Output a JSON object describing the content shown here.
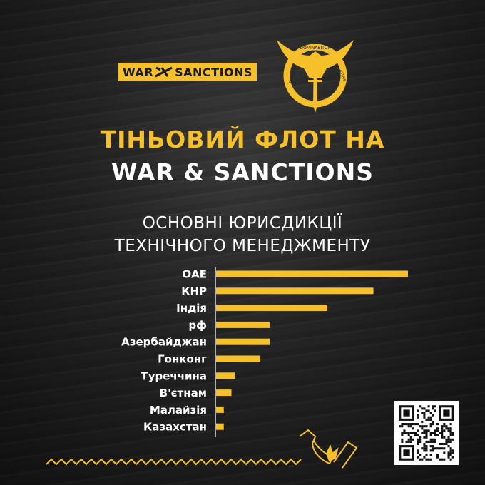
{
  "logo": {
    "text_left": "WAR",
    "text_right": "SANCTIONS",
    "emblem_text_top": "DOMINABITUR",
    "emblem_text_left": "SAPIENS",
    "emblem_text_right": "ASTRIS"
  },
  "header": {
    "title_line1": "ТІНЬОВИЙ ФЛОТ НА",
    "title_line2": "WAR & SANCTIONS"
  },
  "chart_title": {
    "line1": "ОСНОВНІ ЮРИСДИКЦІЇ",
    "line2": "ТЕХНІЧНОГО МЕНЕДЖМЕНТУ"
  },
  "colors": {
    "accent": "#f6c02b",
    "background": "#1a1a1a",
    "text": "#ffffff"
  },
  "chart_data": {
    "type": "bar",
    "orientation": "horizontal",
    "title": "ОСНОВНІ ЮРИСДИКЦІЇ ТЕХНІЧНОГО МЕНЕДЖМЕНТУ",
    "categories": [
      "ОАЕ",
      "КНР",
      "Індія",
      "рф",
      "Азербайджан",
      "Гонконг",
      "Туреччина",
      "В'єтнам",
      "Малайзія",
      "Казахстан"
    ],
    "values": [
      100,
      82,
      58,
      28,
      28,
      23,
      10,
      8,
      4,
      4
    ],
    "value_unit": "relative (% of largest bar, no axis scale shown)",
    "grid": false,
    "legend": "none"
  },
  "icons": [
    "sinking-ship-icon",
    "wave-line",
    "qr-code"
  ]
}
